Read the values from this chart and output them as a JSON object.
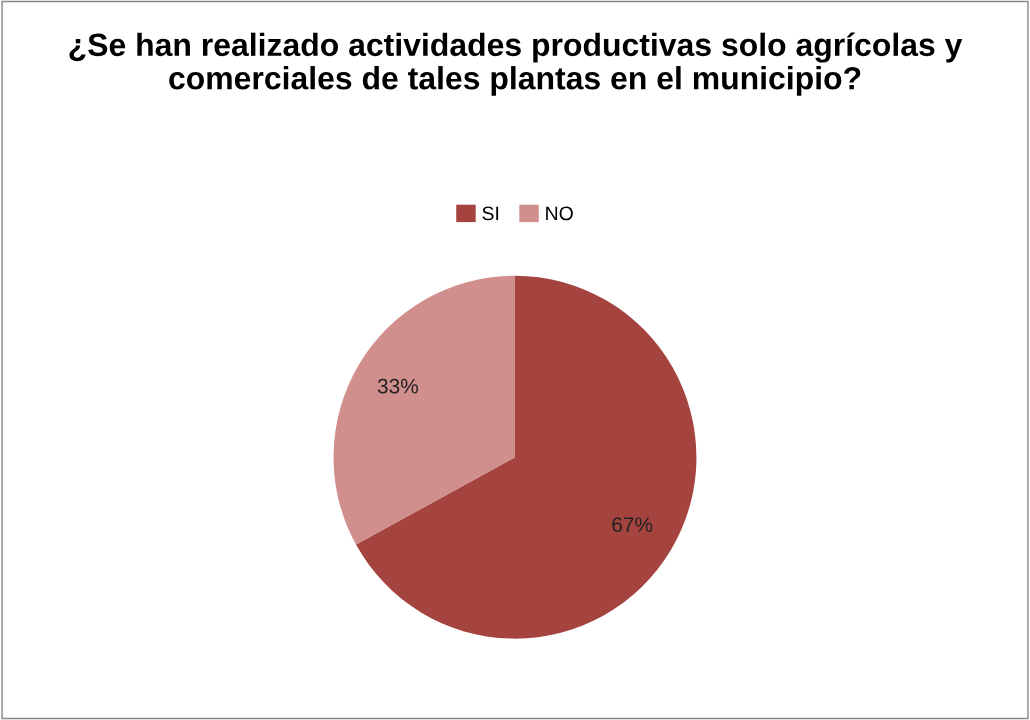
{
  "chart_data": {
    "type": "pie",
    "title": "¿Se han realizado actividades productivas solo agrícolas y comerciales de tales plantas en el municipio?",
    "categories": [
      "SI",
      "NO"
    ],
    "values": [
      67,
      33
    ],
    "colors": [
      "#a5443f",
      "#d08e8c"
    ],
    "value_labels": [
      "67%",
      "33%"
    ],
    "legend": "top"
  }
}
